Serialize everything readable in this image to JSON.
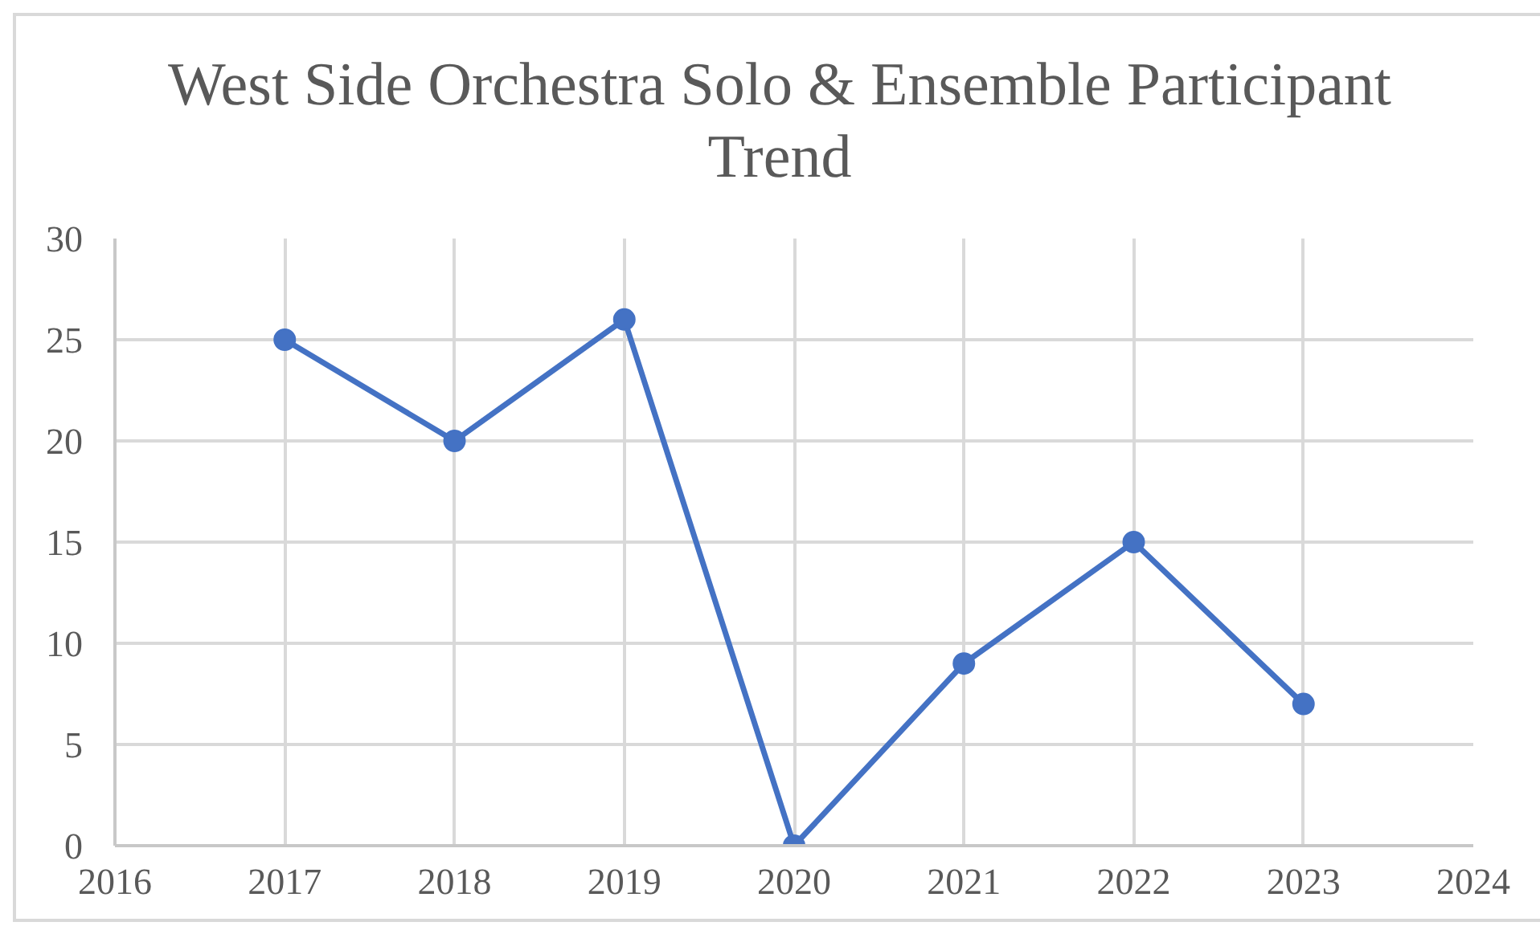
{
  "chart_data": {
    "type": "line",
    "title": "West Side Orchestra Solo & Ensemble Participant Trend",
    "x": [
      2017,
      2018,
      2019,
      2020,
      2021,
      2022,
      2023
    ],
    "series": [
      {
        "color": "#4472c4",
        "values": [
          25,
          20,
          26,
          0,
          9,
          15,
          7
        ]
      }
    ],
    "xlim": [
      2016,
      2024
    ],
    "xticks": [
      2016,
      2017,
      2018,
      2019,
      2020,
      2021,
      2022,
      2023,
      2024
    ],
    "ylim": [
      0,
      30
    ],
    "yticks": [
      0,
      5,
      10,
      15,
      20,
      25,
      30
    ],
    "grid": true,
    "marker": "circle",
    "line_style": "solid"
  }
}
